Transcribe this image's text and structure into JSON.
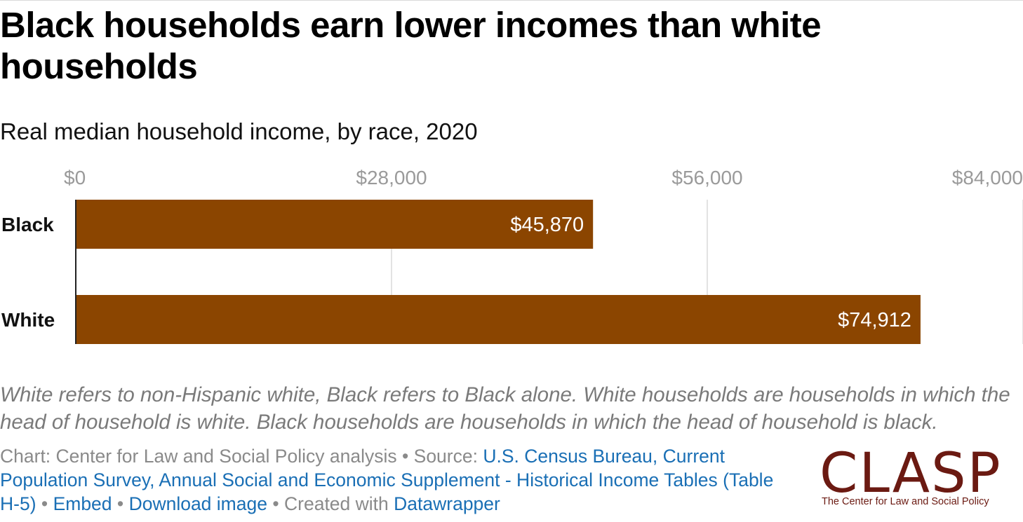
{
  "title": "Black households earn lower incomes than white households",
  "subtitle": "Real median household income, by race, 2020",
  "chart_data": {
    "type": "bar",
    "orientation": "horizontal",
    "categories": [
      "Black",
      "White"
    ],
    "values": [
      45870,
      74912
    ],
    "value_labels": [
      "$45,870",
      "$74,912"
    ],
    "xlim": [
      0,
      84000
    ],
    "ticks": [
      0,
      28000,
      56000,
      84000
    ],
    "tick_labels": [
      "$0",
      "$28,000",
      "$56,000",
      "$84,000"
    ],
    "bar_color": "#8b4500",
    "grid": true,
    "axis_position": "top"
  },
  "notes": "White refers to non-Hispanic white, Black refers to Black alone. White households are households in which the head of household is white. Black households are households in which the head of household is black.",
  "footer": {
    "chart_prefix": "Chart: Center for Law and Social Policy analysis",
    "source_prefix": "Source:",
    "source_link": "U.S. Census Bureau, Current Population Survey, Annual Social and Economic Supplement - Historical Income Tables (Table H-5)",
    "embed": "Embed",
    "download": "Download image",
    "created_prefix": "Created with",
    "created_link": "Datawrapper",
    "separator": "•"
  },
  "logo": {
    "wordmark": "CLASP",
    "tagline": "The Center for Law and Social Policy",
    "color": "#6b1a12"
  },
  "colors": {
    "link": "#1a6fb5",
    "muted_text": "#8a8a8a",
    "gridline": "#e3e3e3"
  }
}
